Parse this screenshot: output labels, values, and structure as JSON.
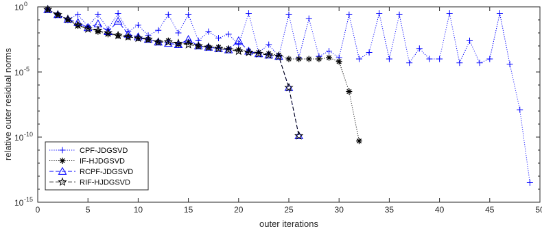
{
  "chart_data": {
    "type": "line",
    "xlabel": "outer iterations",
    "ylabel": "relative outer residual norms",
    "xlim": [
      0,
      50
    ],
    "ylim_exp": [
      -15,
      0
    ],
    "yscale": "log",
    "x_ticks": [
      0,
      5,
      10,
      15,
      20,
      25,
      30,
      35,
      40,
      45,
      50
    ],
    "y_ticks": [
      {
        "exp": -15,
        "base": "10",
        "sup": "-15"
      },
      {
        "exp": -10,
        "base": "10",
        "sup": "-10"
      },
      {
        "exp": -5,
        "base": "10",
        "sup": "-5"
      },
      {
        "exp": 0,
        "base": "10",
        "sup": "0"
      }
    ],
    "legend_position": "bottom-left",
    "series": [
      {
        "name": "CPF-JDGSVD",
        "color": "#0000ff",
        "marker": "plus",
        "line": "dotted",
        "x": [
          1,
          2,
          3,
          4,
          5,
          6,
          7,
          8,
          9,
          10,
          11,
          12,
          13,
          14,
          15,
          16,
          17,
          18,
          19,
          20,
          21,
          22,
          23,
          24,
          25,
          26,
          27,
          28,
          29,
          30,
          31,
          32,
          33,
          34,
          35,
          36,
          37,
          38,
          39,
          40,
          41,
          42,
          43,
          44,
          45,
          46,
          47,
          48,
          49
        ],
        "log10_y": [
          -0.2,
          -0.6,
          -0.95,
          -0.6,
          -1.5,
          -0.6,
          -1.7,
          -0.5,
          -1.9,
          -1.4,
          -2.2,
          -1.8,
          -0.6,
          -2.0,
          -0.6,
          -2.6,
          -1.9,
          -2.4,
          -2.1,
          -2.9,
          -0.5,
          -3.5,
          -2.9,
          -3.8,
          -0.6,
          -3.9,
          -0.9,
          -3.8,
          -3.4,
          -3.9,
          -0.6,
          -4.0,
          -3.5,
          -0.5,
          -4.0,
          -0.6,
          -4.3,
          -3.2,
          -4.0,
          -4.0,
          -0.5,
          -4.3,
          -2.6,
          -4.3,
          -4.0,
          -0.5,
          -4.4,
          -7.9,
          -13.5
        ]
      },
      {
        "name": "IF-HJDGSVD",
        "color": "#000000",
        "marker": "asterisk",
        "line": "dotted",
        "x": [
          1,
          2,
          3,
          4,
          5,
          6,
          7,
          8,
          9,
          10,
          11,
          12,
          13,
          14,
          15,
          16,
          17,
          18,
          19,
          20,
          21,
          22,
          23,
          24,
          25,
          26,
          27,
          28,
          29,
          30,
          31,
          32
        ],
        "log10_y": [
          -0.2,
          -0.6,
          -1.0,
          -1.45,
          -1.6,
          -1.9,
          -2.1,
          -2.2,
          -2.3,
          -2.4,
          -2.5,
          -2.7,
          -2.6,
          -2.9,
          -2.7,
          -3.0,
          -3.1,
          -3.1,
          -3.2,
          -3.3,
          -3.4,
          -3.5,
          -3.6,
          -3.7,
          -4.0,
          -4.0,
          -4.0,
          -4.0,
          -3.9,
          -4.2,
          -6.5,
          -10.3
        ]
      },
      {
        "name": "RCPF-JDGSVD",
        "color": "#0000ff",
        "marker": "triangle",
        "line": "dashed",
        "x": [
          1,
          2,
          3,
          4,
          5,
          6,
          7,
          8,
          9,
          10,
          11,
          12,
          13,
          14,
          15,
          16,
          17,
          18,
          19,
          20,
          21,
          22,
          23,
          24,
          25,
          26
        ],
        "log10_y": [
          -0.2,
          -0.6,
          -0.95,
          -1.2,
          -1.6,
          -1.3,
          -1.9,
          -1.1,
          -2.1,
          -2.3,
          -2.5,
          -2.7,
          -2.8,
          -2.9,
          -2.5,
          -3.0,
          -3.1,
          -3.2,
          -3.3,
          -2.6,
          -3.4,
          -3.6,
          -3.7,
          -3.8,
          -6.2,
          -9.9
        ]
      },
      {
        "name": "RIF-HJDGSVD",
        "color": "#000000",
        "marker": "star",
        "line": "dashed",
        "x": [
          1,
          2,
          3,
          4,
          5,
          6,
          7,
          8,
          9,
          10,
          11,
          12,
          13,
          14,
          15,
          16,
          17,
          18,
          19,
          20,
          21,
          22,
          23,
          24,
          25,
          26
        ],
        "log10_y": [
          -0.2,
          -0.6,
          -0.95,
          -1.4,
          -1.7,
          -1.8,
          -2.0,
          -2.2,
          -2.3,
          -2.4,
          -2.5,
          -2.7,
          -2.7,
          -2.8,
          -2.9,
          -3.0,
          -3.1,
          -3.2,
          -3.3,
          -3.4,
          -3.5,
          -3.6,
          -3.7,
          -3.8,
          -6.2,
          -9.9
        ]
      }
    ]
  }
}
